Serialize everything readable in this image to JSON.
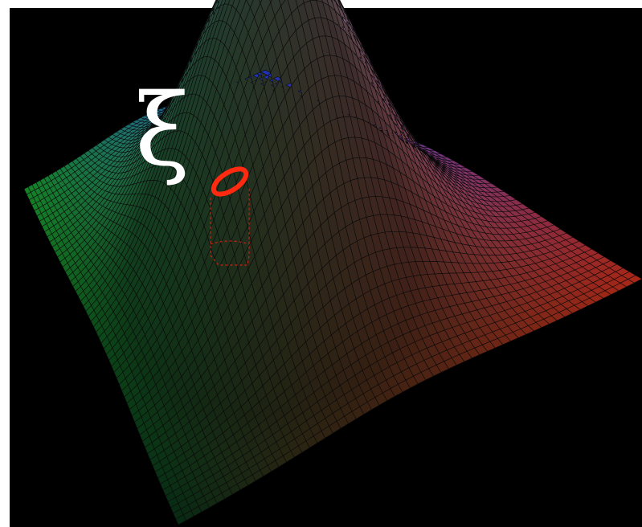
{
  "symbol_label": "ξ",
  "colors": {
    "background": "#000000",
    "frame": "#ffffff",
    "mesh_lines": "#0a0a0a",
    "corner_green": "#1fc53a",
    "corner_blue": "#2a42ff",
    "corner_red": "#ff3a22",
    "corner_dark": "#0c4420",
    "marker": "#ff2a10",
    "label": "#ffffff"
  }
}
